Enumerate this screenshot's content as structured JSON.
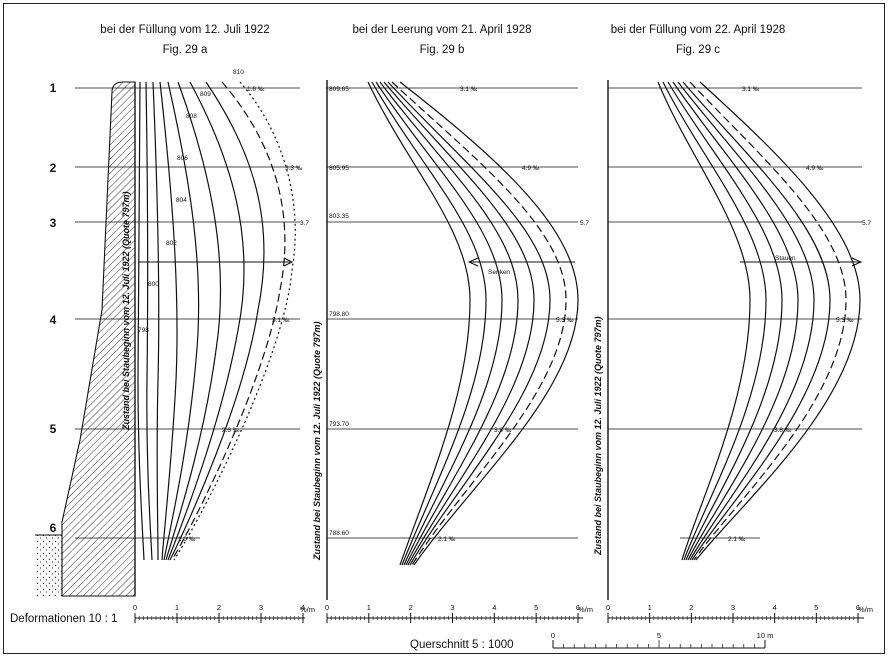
{
  "headers": [
    {
      "title": "bei der Füllung  vom  12. Juli 1922",
      "fig": "Fig. 29 a"
    },
    {
      "title": "bei der Leerung vom 21. April 1928",
      "fig": "Fig.  29 b"
    },
    {
      "title": "bei der Füllung  vom  22. April 1928",
      "fig": "Fig. 29 c"
    }
  ],
  "levels": [
    "1",
    "2",
    "3",
    "4",
    "5",
    "6"
  ],
  "elevations_b": [
    "809.65",
    "805.95",
    "803.35",
    "798.80",
    "793.70",
    "788.60"
  ],
  "panel_a_elevations": [
    "810",
    "809",
    "808",
    "806",
    "804",
    "802",
    "800",
    "798"
  ],
  "side_label": "Zustand  bei Staubeginn  vom  12. Juli  1922  (Quote 797m)",
  "values_a": [
    "1.6 ‰",
    "3.3 ‰",
    "3.7",
    "3.1 ‰",
    "2.6 ‰",
    "1.0 ‰"
  ],
  "values_b": [
    "3.1 ‰",
    "4.9 ‰",
    "5.7",
    "5.3 ‰",
    "3.8 ‰",
    "2.1 ‰"
  ],
  "values_c": [
    "3.1 ‰",
    "4.9 ‰",
    "5.7",
    "5.3 ‰",
    "3.8 ‰",
    "2.1 ‰"
  ],
  "arrow_b": "Senken",
  "arrow_c": "Stauen",
  "axis_ticks_a": [
    "0",
    "1",
    "2",
    "3",
    "4"
  ],
  "axis_unit_a": "%/m",
  "axis_ticks_bc": [
    "0",
    "1",
    "2",
    "3",
    "4",
    "5",
    "6"
  ],
  "axis_unit_bc": "%/m",
  "deformation_label": "Deformationen  10 : 1",
  "section_label": "Querschnitt   5 : 1000",
  "scalebar_ticks": [
    "0",
    "5",
    "10 m"
  ],
  "colors": {
    "ink": "#111111",
    "paper": "#ffffff",
    "hatch": "#222222"
  }
}
